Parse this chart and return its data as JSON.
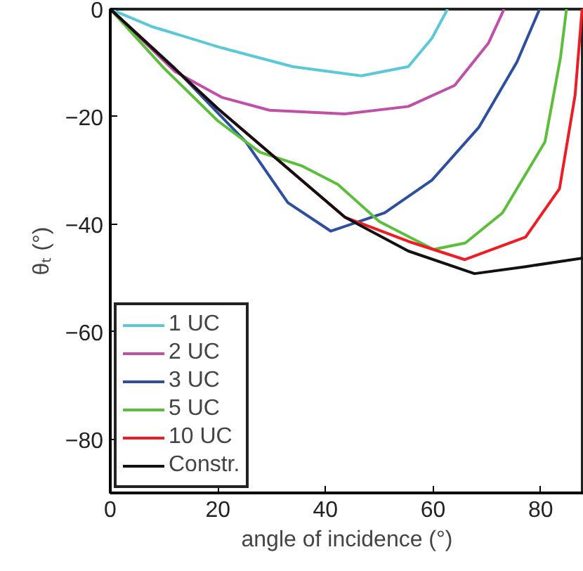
{
  "chart_data": {
    "type": "line",
    "xlabel": "angle of incidence (°)",
    "ylabel": "θₜ (°)",
    "xlim": [
      0,
      88
    ],
    "ylim": [
      -90,
      0
    ],
    "xticks": [
      0,
      20,
      40,
      60,
      80
    ],
    "yticks": [
      -80,
      -60,
      -40,
      -20,
      0
    ],
    "grid": false,
    "legend": "bottom left",
    "line_style": "solid",
    "series": [
      {
        "name": "1 UC",
        "color": "#5bc8d8",
        "x": [
          0,
          7.6,
          20.7,
          33.9,
          46.7,
          55.4,
          59.8,
          62.7
        ],
        "values": [
          0,
          -3.2,
          -7.2,
          -10.7,
          -12.4,
          -10.7,
          -5.4,
          0
        ]
      },
      {
        "name": "2 UC",
        "color": "#c04fa8",
        "x": [
          0,
          12,
          20.7,
          29.6,
          43.6,
          55.4,
          64,
          70.3,
          73.2
        ],
        "values": [
          0,
          -11.6,
          -16.4,
          -18.8,
          -19.5,
          -18.1,
          -14.2,
          -6.3,
          0
        ]
      },
      {
        "name": "3 UC",
        "color": "#2e4fa0",
        "x": [
          0,
          12,
          25.2,
          33,
          41,
          51,
          59.8,
          68.5,
          75.6,
          79.8
        ],
        "values": [
          0,
          -11,
          -24.7,
          -36,
          -41.3,
          -37.9,
          -31.8,
          -22,
          -9.8,
          0
        ]
      },
      {
        "name": "5 UC",
        "color": "#5cbf3c",
        "x": [
          0,
          10,
          20,
          27.8,
          35.7,
          42.3,
          50,
          60.1,
          66,
          72.9,
          80.8,
          83.7,
          84.8
        ],
        "values": [
          0,
          -11,
          -20.8,
          -26.6,
          -29.2,
          -32.6,
          -39.5,
          -44.7,
          -43.5,
          -37.9,
          -24.7,
          -8.9,
          0
        ]
      },
      {
        "name": "10 UC",
        "color": "#ee1c24",
        "x": [
          0,
          20,
          43.6,
          55.4,
          65.9,
          77.2,
          83.5,
          86.4,
          87.7
        ],
        "values": [
          0,
          -18.5,
          -38.7,
          -43.2,
          -46.6,
          -42.4,
          -33.4,
          -16,
          0
        ]
      },
      {
        "name": "Constr.",
        "color": "#111111",
        "x": [
          0,
          20,
          43.6,
          55.4,
          67.7,
          77.2,
          88
        ],
        "values": [
          0,
          -18.5,
          -38.7,
          -45,
          -49.2,
          -47.9,
          -46.3
        ]
      }
    ]
  }
}
